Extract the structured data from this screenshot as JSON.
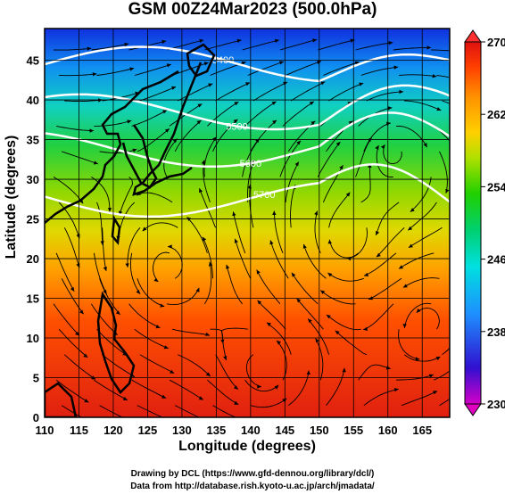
{
  "title": "GSM 00Z24Mar2023 (500.0hPa)",
  "x_axis": {
    "label": "Longitude (degrees)",
    "ticks": [
      "110",
      "115",
      "120",
      "125",
      "130",
      "135",
      "140",
      "145",
      "150",
      "155",
      "160",
      "165"
    ],
    "range": [
      110,
      169
    ]
  },
  "y_axis": {
    "label": "Latitude  (degrees)",
    "ticks": [
      "0",
      "5",
      "10",
      "15",
      "20",
      "25",
      "30",
      "35",
      "40",
      "45"
    ],
    "range": [
      0,
      49
    ]
  },
  "colorbar": {
    "ticks": [
      "230",
      "238",
      "246",
      "254",
      "262",
      "270"
    ],
    "range": [
      230,
      270
    ],
    "colors": [
      "#d400c8",
      "#3010d0",
      "#1e90ff",
      "#00e0e0",
      "#00d070",
      "#20d000",
      "#b0e000",
      "#ffd000",
      "#ff9000",
      "#ff4000",
      "#e01010"
    ]
  },
  "contours": [
    {
      "label": "5400",
      "lat": 44.5
    },
    {
      "label": "5500",
      "lat": 38.5
    },
    {
      "label": "5600",
      "lat": 33.8
    },
    {
      "label": "5700",
      "lat": 27.5
    }
  ],
  "credits": [
    "Drawing by DCL (https://www.gfd-dennou.org/library/dcl/)",
    "Data from http://database.rish.kyoto-u.ac.jp/arch/jmadata/"
  ]
}
